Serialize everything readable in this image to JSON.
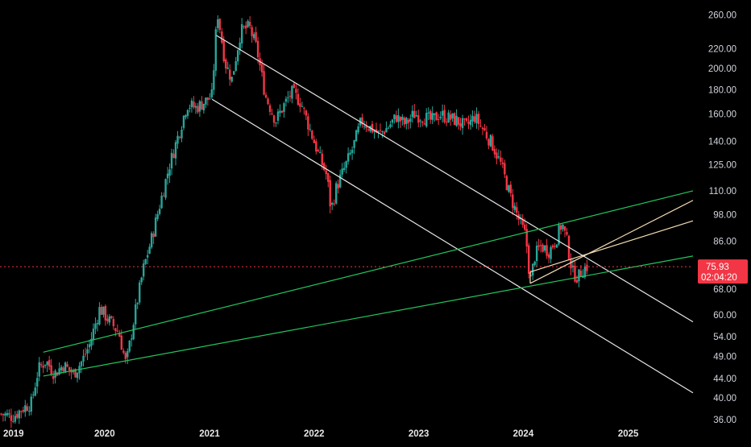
{
  "chart_data": {
    "type": "candlestick",
    "title": "",
    "xlabel": "",
    "ylabel": "",
    "y_scale": "log",
    "ylim": [
      35,
      275
    ],
    "xlim": [
      "2019-01-01",
      "2025-08-15"
    ],
    "y_ticks": [
      "260.00",
      "220.00",
      "200.00",
      "180.00",
      "160.00",
      "140.00",
      "125.00",
      "110.00",
      "98.00",
      "86.00",
      "75.93",
      "68.00",
      "60.00",
      "54.00",
      "49.00",
      "44.00",
      "40.00",
      "36.00"
    ],
    "x_ticks": [
      {
        "label": "2019",
        "date": "2019-01-01"
      },
      {
        "label": "2020",
        "date": "2020-01-01"
      },
      {
        "label": "2021",
        "date": "2021-01-01"
      },
      {
        "label": "2022",
        "date": "2022-01-01"
      },
      {
        "label": "2023",
        "date": "2023-01-01"
      },
      {
        "label": "2024",
        "date": "2024-01-01"
      },
      {
        "label": "2025",
        "date": "2025-01-01"
      }
    ],
    "current_price": {
      "value": 75.93,
      "label": "75.93",
      "countdown": "02:04:20",
      "color": "#f23645"
    },
    "colors": {
      "up": "#26a69a",
      "down": "#f23645",
      "trendline_white": "#e8e8e8",
      "trendline_green": "#22c55e",
      "trendline_tan": "#f5deb3",
      "background": "#000000"
    },
    "price_path": [
      [
        "2019-01-05",
        37
      ],
      [
        "2019-02-15",
        36.5
      ],
      [
        "2019-03-20",
        38
      ],
      [
        "2019-04-20",
        39
      ],
      [
        "2019-05-15",
        46
      ],
      [
        "2019-06-10",
        48
      ],
      [
        "2019-07-10",
        45
      ],
      [
        "2019-08-10",
        47
      ],
      [
        "2019-09-15",
        45
      ],
      [
        "2019-10-15",
        48
      ],
      [
        "2019-11-10",
        52
      ],
      [
        "2019-12-15",
        62
      ],
      [
        "2020-01-20",
        58
      ],
      [
        "2020-02-20",
        55
      ],
      [
        "2020-03-16",
        47
      ],
      [
        "2020-04-15",
        60
      ],
      [
        "2020-05-15",
        75
      ],
      [
        "2020-06-15",
        88
      ],
      [
        "2020-07-15",
        105
      ],
      [
        "2020-08-15",
        125
      ],
      [
        "2020-09-15",
        145
      ],
      [
        "2020-10-15",
        168
      ],
      [
        "2020-11-15",
        165
      ],
      [
        "2020-12-15",
        170
      ],
      [
        "2021-01-10",
        175
      ],
      [
        "2021-01-28",
        265
      ],
      [
        "2021-02-25",
        205
      ],
      [
        "2021-03-20",
        190
      ],
      [
        "2021-04-20",
        240
      ],
      [
        "2021-05-20",
        245
      ],
      [
        "2021-06-15",
        220
      ],
      [
        "2021-07-15",
        175
      ],
      [
        "2021-08-20",
        155
      ],
      [
        "2021-09-20",
        168
      ],
      [
        "2021-10-15",
        178
      ],
      [
        "2021-11-15",
        170
      ],
      [
        "2021-12-15",
        150
      ],
      [
        "2022-01-15",
        132
      ],
      [
        "2022-02-15",
        118
      ],
      [
        "2022-03-01",
        100
      ],
      [
        "2022-03-20",
        112
      ],
      [
        "2022-04-15",
        122
      ],
      [
        "2022-05-15",
        135
      ],
      [
        "2022-06-15",
        155
      ],
      [
        "2022-07-15",
        150
      ],
      [
        "2022-08-15",
        145
      ],
      [
        "2022-09-15",
        150
      ],
      [
        "2022-10-15",
        158
      ],
      [
        "2022-11-15",
        152
      ],
      [
        "2022-12-15",
        160
      ],
      [
        "2023-01-15",
        158
      ],
      [
        "2023-02-15",
        155
      ],
      [
        "2023-03-15",
        160
      ],
      [
        "2023-04-15",
        157
      ],
      [
        "2023-05-15",
        155
      ],
      [
        "2023-06-15",
        150
      ],
      [
        "2023-07-15",
        158
      ],
      [
        "2023-08-15",
        148
      ],
      [
        "2023-09-15",
        138
      ],
      [
        "2023-10-15",
        125
      ],
      [
        "2023-11-15",
        108
      ],
      [
        "2023-12-15",
        96
      ],
      [
        "2024-01-10",
        88
      ],
      [
        "2024-01-25",
        70
      ],
      [
        "2024-02-10",
        80
      ],
      [
        "2024-03-01",
        84
      ],
      [
        "2024-04-01",
        82
      ],
      [
        "2024-04-25",
        87
      ],
      [
        "2024-05-15",
        94
      ],
      [
        "2024-06-01",
        86
      ],
      [
        "2024-06-20",
        74
      ],
      [
        "2024-07-10",
        72
      ],
      [
        "2024-07-25",
        75
      ],
      [
        "2024-08-10",
        76
      ]
    ],
    "trendlines": [
      {
        "color": "white",
        "from": [
          "2021-01-25",
          235
        ],
        "to": [
          "2025-08-15",
          58
        ]
      },
      {
        "color": "white",
        "from": [
          "2021-01-10",
          172
        ],
        "to": [
          "2025-08-15",
          41
        ]
      },
      {
        "color": "green",
        "from": [
          "2019-06-01",
          50
        ],
        "to": [
          "2025-08-15",
          110
        ]
      },
      {
        "color": "green",
        "from": [
          "2019-06-01",
          44.5
        ],
        "to": [
          "2025-08-15",
          80
        ]
      },
      {
        "color": "tan",
        "from": [
          "2024-01-25",
          70
        ],
        "to": [
          "2025-08-15",
          105
        ]
      },
      {
        "color": "tan",
        "from": [
          "2024-01-25",
          74
        ],
        "to": [
          "2025-08-15",
          95
        ]
      },
      {
        "color": "tan",
        "from": [
          "2024-01-25",
          70
        ],
        "to": [
          "2024-01-25",
          74
        ]
      }
    ]
  }
}
